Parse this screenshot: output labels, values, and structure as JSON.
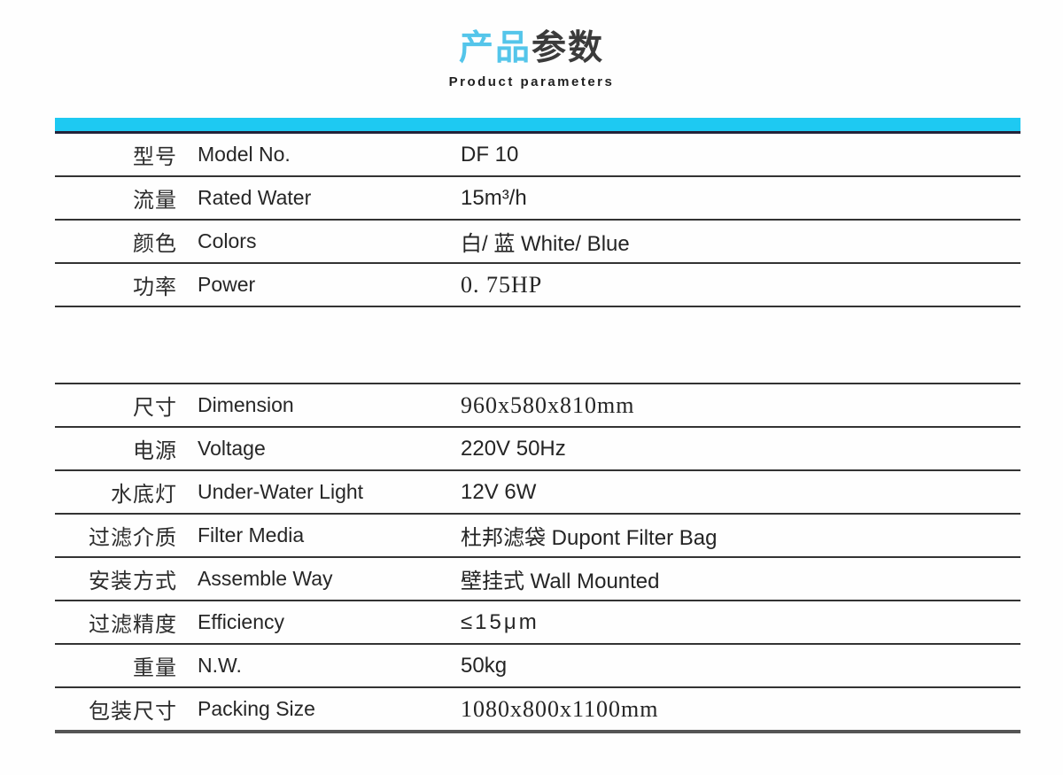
{
  "header": {
    "title_accent": "产品",
    "title_rest": "参数",
    "subtitle": "Product parameters"
  },
  "colors": {
    "accent_bar": "#1ec9f2",
    "title_accent": "#54c5ea",
    "title_text": "#3b3b3b",
    "dark_rule": "#23233a",
    "row_line": "#333333",
    "text": "#2b2b2b"
  },
  "table": {
    "columns": [
      "label_cn",
      "label_en",
      "value"
    ],
    "group1": [
      {
        "cn": "型号",
        "en": "Model No.",
        "value": "DF 10",
        "value_style": "sans"
      },
      {
        "cn": "流量",
        "en": "Rated Water",
        "value": "15m³/h",
        "value_style": "sans"
      },
      {
        "cn": "颜色",
        "en": "Colors",
        "value": "白/ 蓝 White/ Blue",
        "value_style": "sans"
      },
      {
        "cn": "功率",
        "en": "Power",
        "value": "0. 75HP",
        "value_style": "serif"
      }
    ],
    "group2": [
      {
        "cn": "尺寸",
        "en": "Dimension",
        "value": "960x580x810mm",
        "value_style": "serif"
      },
      {
        "cn": "电源",
        "en": "Voltage",
        "value": "220V 50Hz",
        "value_style": "sans"
      },
      {
        "cn": "水底灯",
        "en": "Under-Water Light",
        "value": "12V 6W",
        "value_style": "sans"
      },
      {
        "cn": "过滤介质",
        "en": "Filter Media",
        "value": "杜邦滤袋 Dupont Filter Bag",
        "value_style": "sans"
      },
      {
        "cn": "安装方式",
        "en": "Assemble Way",
        "value": "壁挂式 Wall Mounted",
        "value_style": "sans"
      },
      {
        "cn": "过滤精度",
        "en": "Efficiency",
        "value": "≤15μm",
        "value_style": "spaced"
      },
      {
        "cn": "重量",
        "en": "N.W.",
        "value": "50kg",
        "value_style": "sans"
      },
      {
        "cn": "包装尺寸",
        "en": "Packing Size",
        "value": "1080x800x1100mm",
        "value_style": "serif"
      }
    ]
  }
}
